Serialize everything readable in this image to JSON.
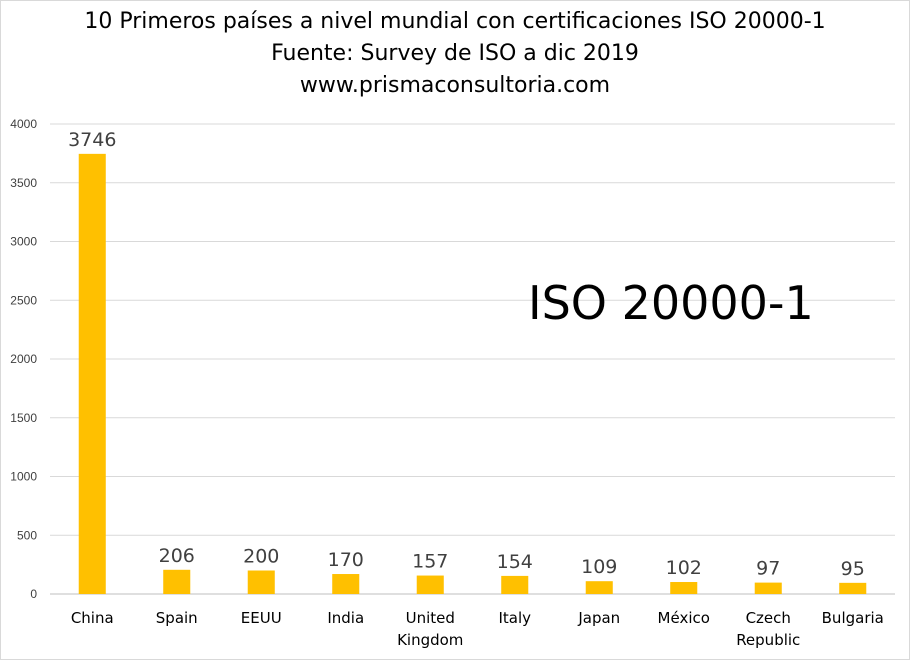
{
  "chart_data": {
    "type": "bar",
    "title": [
      "10 Primeros países a nivel mundial con certificaciones ISO 20000-1",
      "Fuente: Survey de ISO a dic 2019",
      "www.prismaconsultoria.com"
    ],
    "annotation": "ISO 20000-1",
    "categories": [
      "China",
      "Spain",
      "EEUU",
      "India",
      "United Kingdom",
      "Italy",
      "Japan",
      "México",
      "Czech Republic",
      "Bulgaria"
    ],
    "category_lines": [
      [
        "China"
      ],
      [
        "Spain"
      ],
      [
        "EEUU"
      ],
      [
        "India"
      ],
      [
        "United",
        "Kingdom"
      ],
      [
        "Italy"
      ],
      [
        "Japan"
      ],
      [
        "México"
      ],
      [
        "Czech",
        "Republic"
      ],
      [
        "Bulgaria"
      ]
    ],
    "values": [
      3746,
      206,
      200,
      170,
      157,
      154,
      109,
      102,
      97,
      95
    ],
    "data_labels": [
      "3746",
      "206",
      "200",
      "170",
      "157",
      "154",
      "109",
      "102",
      "97",
      "95"
    ],
    "ylim": [
      0,
      4000
    ],
    "yticks": [
      0,
      500,
      1000,
      1500,
      2000,
      2500,
      3000,
      3500,
      4000
    ],
    "ytick_labels": [
      "0",
      "500",
      "1000",
      "1500",
      "2000",
      "2500",
      "3000",
      "3500",
      "4000"
    ],
    "grid": true,
    "legend": "none",
    "colors": {
      "bar": "#FFC000",
      "grid": "#d9d9d9",
      "axis": "#bfbfbf"
    }
  }
}
